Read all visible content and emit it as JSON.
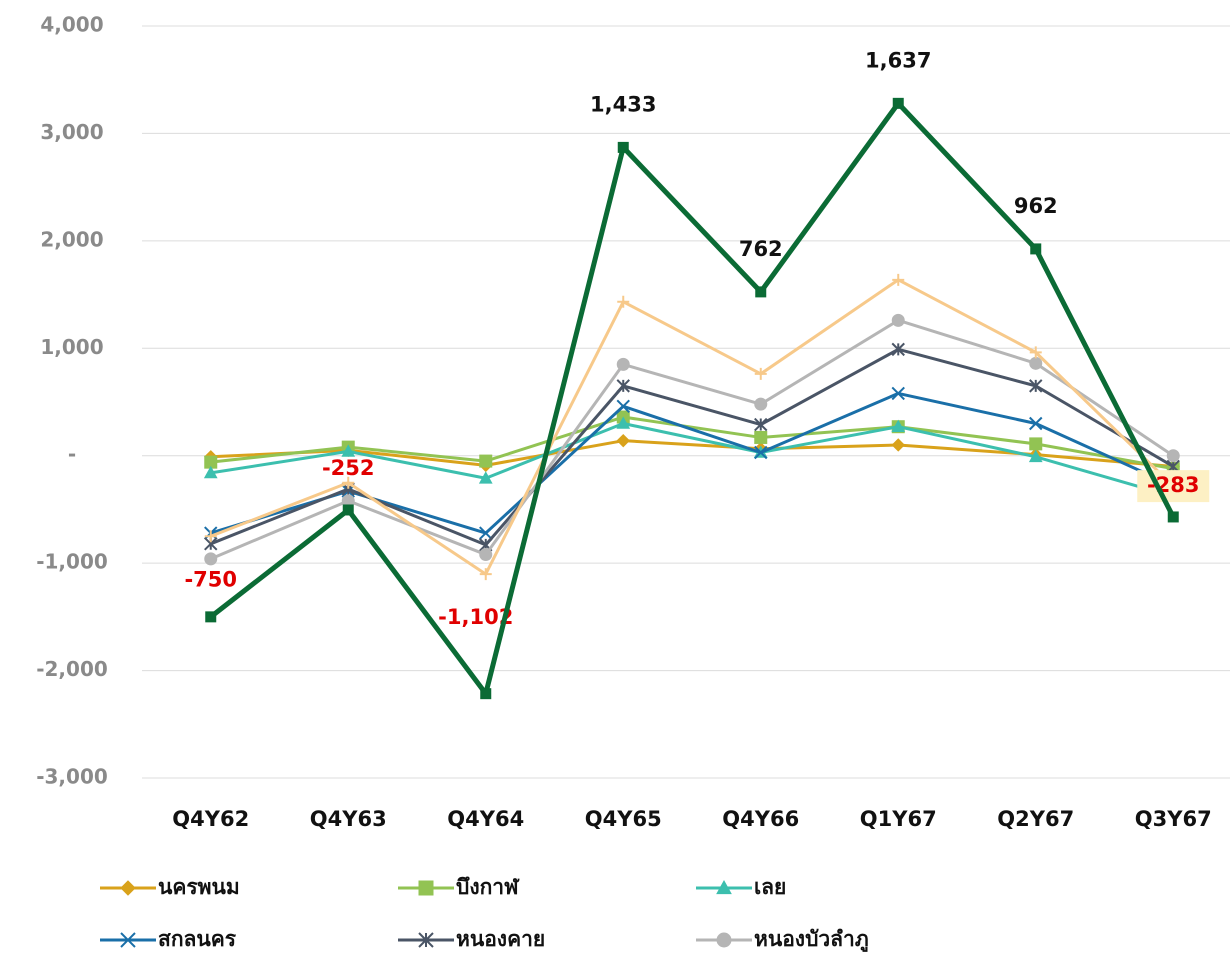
{
  "chart_data": {
    "type": "line",
    "categories": [
      "Q4Y62",
      "Q4Y63",
      "Q4Y64",
      "Q4Y65",
      "Q4Y66",
      "Q1Y67",
      "Q2Y67",
      "Q3Y67"
    ],
    "ylim": [
      -3000,
      4000
    ],
    "yticks": [
      {
        "value": 4000,
        "label": "4,000"
      },
      {
        "value": 3000,
        "label": "3,000"
      },
      {
        "value": 2000,
        "label": "2,000"
      },
      {
        "value": 1000,
        "label": "1,000"
      },
      {
        "value": 0,
        "label": "-"
      },
      {
        "value": -1000,
        "label": "-1,000"
      },
      {
        "value": -2000,
        "label": "-2,000"
      },
      {
        "value": -3000,
        "label": "-3,000"
      }
    ],
    "grid": true,
    "series": [
      {
        "name": "นครพนม",
        "color": "#d9a21b",
        "marker": "diamond",
        "values": [
          -10,
          50,
          -90,
          140,
          65,
          100,
          10,
          -100
        ]
      },
      {
        "name": "บึงกาฬ",
        "color": "#92c353",
        "marker": "square",
        "values": [
          -60,
          80,
          -50,
          360,
          170,
          270,
          110,
          -120
        ]
      },
      {
        "name": "เลย",
        "color": "#3cbfae",
        "marker": "triangle",
        "values": [
          -160,
          40,
          -210,
          300,
          30,
          270,
          -10,
          -380
        ]
      },
      {
        "name": "สกลนคร",
        "color": "#1a6fa8",
        "marker": "x",
        "values": [
          -720,
          -330,
          -720,
          460,
          30,
          580,
          300,
          -280
        ]
      },
      {
        "name": "หนองคาย",
        "color": "#4a5566",
        "marker": "star",
        "values": [
          -820,
          -310,
          -830,
          650,
          290,
          990,
          650,
          -100
        ]
      },
      {
        "name": "หนองบัวลำภู",
        "color": "#b5b5b5",
        "marker": "circle",
        "values": [
          -960,
          -420,
          -920,
          850,
          480,
          1260,
          860,
          0
        ]
      },
      {
        "color": "#f7c98a",
        "marker": "plus",
        "values": [
          -750,
          -252,
          -1102,
          1433,
          762,
          1637,
          962,
          -283
        ],
        "value_labels": [
          "-750",
          "-252",
          "-1,102",
          "1,433",
          "762",
          "1,637",
          "962",
          "-283"
        ]
      },
      {
        "color": "#0b6b35",
        "marker": "square",
        "width": 5,
        "values": [
          -1500,
          -505,
          -2215,
          2870,
          1525,
          3280,
          1925,
          -570
        ]
      }
    ]
  }
}
